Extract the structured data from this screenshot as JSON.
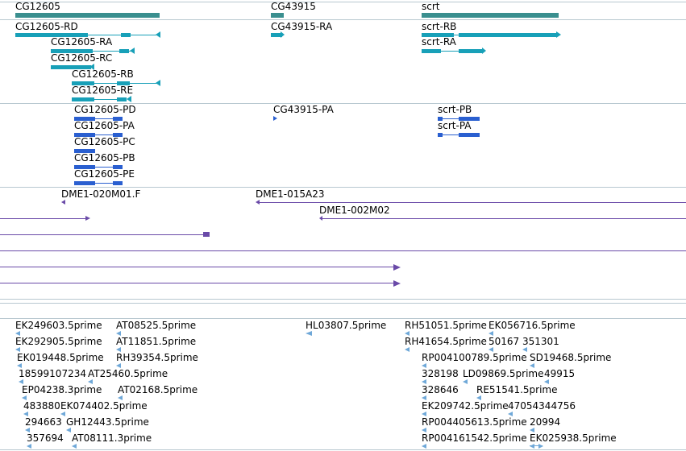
{
  "tracks": {
    "genes": {
      "labels": [
        "CG12605",
        "CG43915",
        "scrt"
      ]
    },
    "transcripts_rna": {
      "labels": [
        "CG12605-RD",
        "CG12605-RA",
        "CG12605-RC",
        "CG12605-RB",
        "CG12605-RE",
        "CG43915-RA",
        "scrt-RB",
        "scrt-RA"
      ]
    },
    "proteins": {
      "labels": [
        "CG12605-PD",
        "CG12605-PA",
        "CG12605-PC",
        "CG12605-PB",
        "CG12605-PE",
        "CG43915-PA",
        "scrt-PB",
        "scrt-PA"
      ]
    },
    "clones": {
      "labels": [
        "DME1-020M01.F",
        "DME1-015A23",
        "DME1-002M02"
      ]
    },
    "ests": {
      "labels": [
        "EK249603.5prime",
        "AT08525.5prime",
        "HL03807.5prime",
        "RH51051.5prime",
        "EK056716.5prime",
        "EK292905.5prime",
        "AT11851.5prime",
        "RH41654.5prime",
        "50167",
        "351301",
        "EK019448.5prime",
        "RH39354.5prime",
        "RP004100789.5prime",
        "SD19468.5prime",
        "18599107234",
        "AT25460.5prime",
        "328198",
        "LD09869.5prime",
        "49915",
        "EP04238.3prime",
        "AT02168.5prime",
        "328646",
        "RE51541.5prime",
        "483880",
        "EK074402.5prime",
        "EK209742.5prime",
        "47054344756",
        "294663",
        "GH12443.5prime",
        "RP004405613.5prime",
        "20994",
        "357694",
        "AT08111.3prime",
        "RP004161542.5prime",
        "EK025938.5prime"
      ]
    }
  },
  "colors": {
    "gene": "#3a8f8f",
    "transcript": "#18a0b8",
    "protein": "#2a5fd0",
    "clone": "#6a4aa8",
    "est": "#6fa8d8",
    "divider": "#b8c8d0"
  }
}
